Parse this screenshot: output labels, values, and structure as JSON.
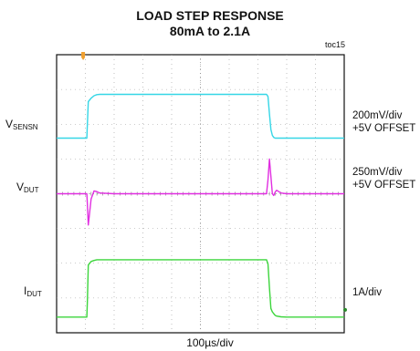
{
  "chart_data": {
    "type": "line",
    "title": "LOAD STEP RESPONSE",
    "subtitle": "80mA to 2.1A",
    "figure_tag": "toc15",
    "xlabel": "100µs/div",
    "x_divisions": 10,
    "y_divisions": 8,
    "grid": true,
    "background": "#ffffff",
    "x": [
      0,
      1.05,
      1.07,
      1.1,
      1.2,
      1.3,
      1.4,
      1.5,
      2.0,
      3.0,
      4.0,
      5.0,
      6.0,
      7.0,
      7.3,
      7.35,
      7.4,
      7.45,
      7.5,
      7.55,
      7.6,
      7.65,
      7.8,
      8.0,
      9.0,
      10.0
    ],
    "series": [
      {
        "name": "V_SENSN",
        "label": "V",
        "subscript": "SENSN",
        "color": "#35d6e6",
        "scale": "200mV/div",
        "offset": "+5V OFFSET",
        "values": [
          5.6,
          5.6,
          6.0,
          6.65,
          6.75,
          6.82,
          6.85,
          6.86,
          6.86,
          6.86,
          6.86,
          6.86,
          6.86,
          6.86,
          6.86,
          6.8,
          6.3,
          5.85,
          5.68,
          5.62,
          5.6,
          5.6,
          5.6,
          5.6,
          5.6,
          5.6
        ]
      },
      {
        "name": "V_DUT",
        "label": "V",
        "subscript": "DUT",
        "color": "#e12ee1",
        "scale": "250mV/div",
        "offset": "+5V OFFSET",
        "values": [
          4.0,
          4.0,
          3.7,
          3.1,
          3.85,
          4.08,
          4.06,
          4.02,
          4.0,
          4.0,
          4.0,
          4.0,
          4.0,
          4.0,
          4.0,
          4.4,
          5.0,
          4.5,
          4.0,
          3.95,
          4.05,
          4.1,
          4.02,
          4.0,
          4.0,
          4.0
        ]
      },
      {
        "name": "I_DUT",
        "label": "I",
        "subscript": "DUT",
        "color": "#3cd53c",
        "scale": "1A/div",
        "offset": "",
        "values": [
          0.45,
          0.45,
          0.9,
          1.95,
          2.05,
          2.08,
          2.1,
          2.1,
          2.1,
          2.1,
          2.1,
          2.1,
          2.1,
          2.1,
          2.1,
          1.98,
          1.3,
          0.7,
          0.6,
          0.55,
          0.5,
          0.48,
          0.46,
          0.45,
          0.45,
          0.45
        ]
      }
    ],
    "trigger_marker_color": "#f0a030",
    "right_marker_color": "#2a8a2a"
  }
}
